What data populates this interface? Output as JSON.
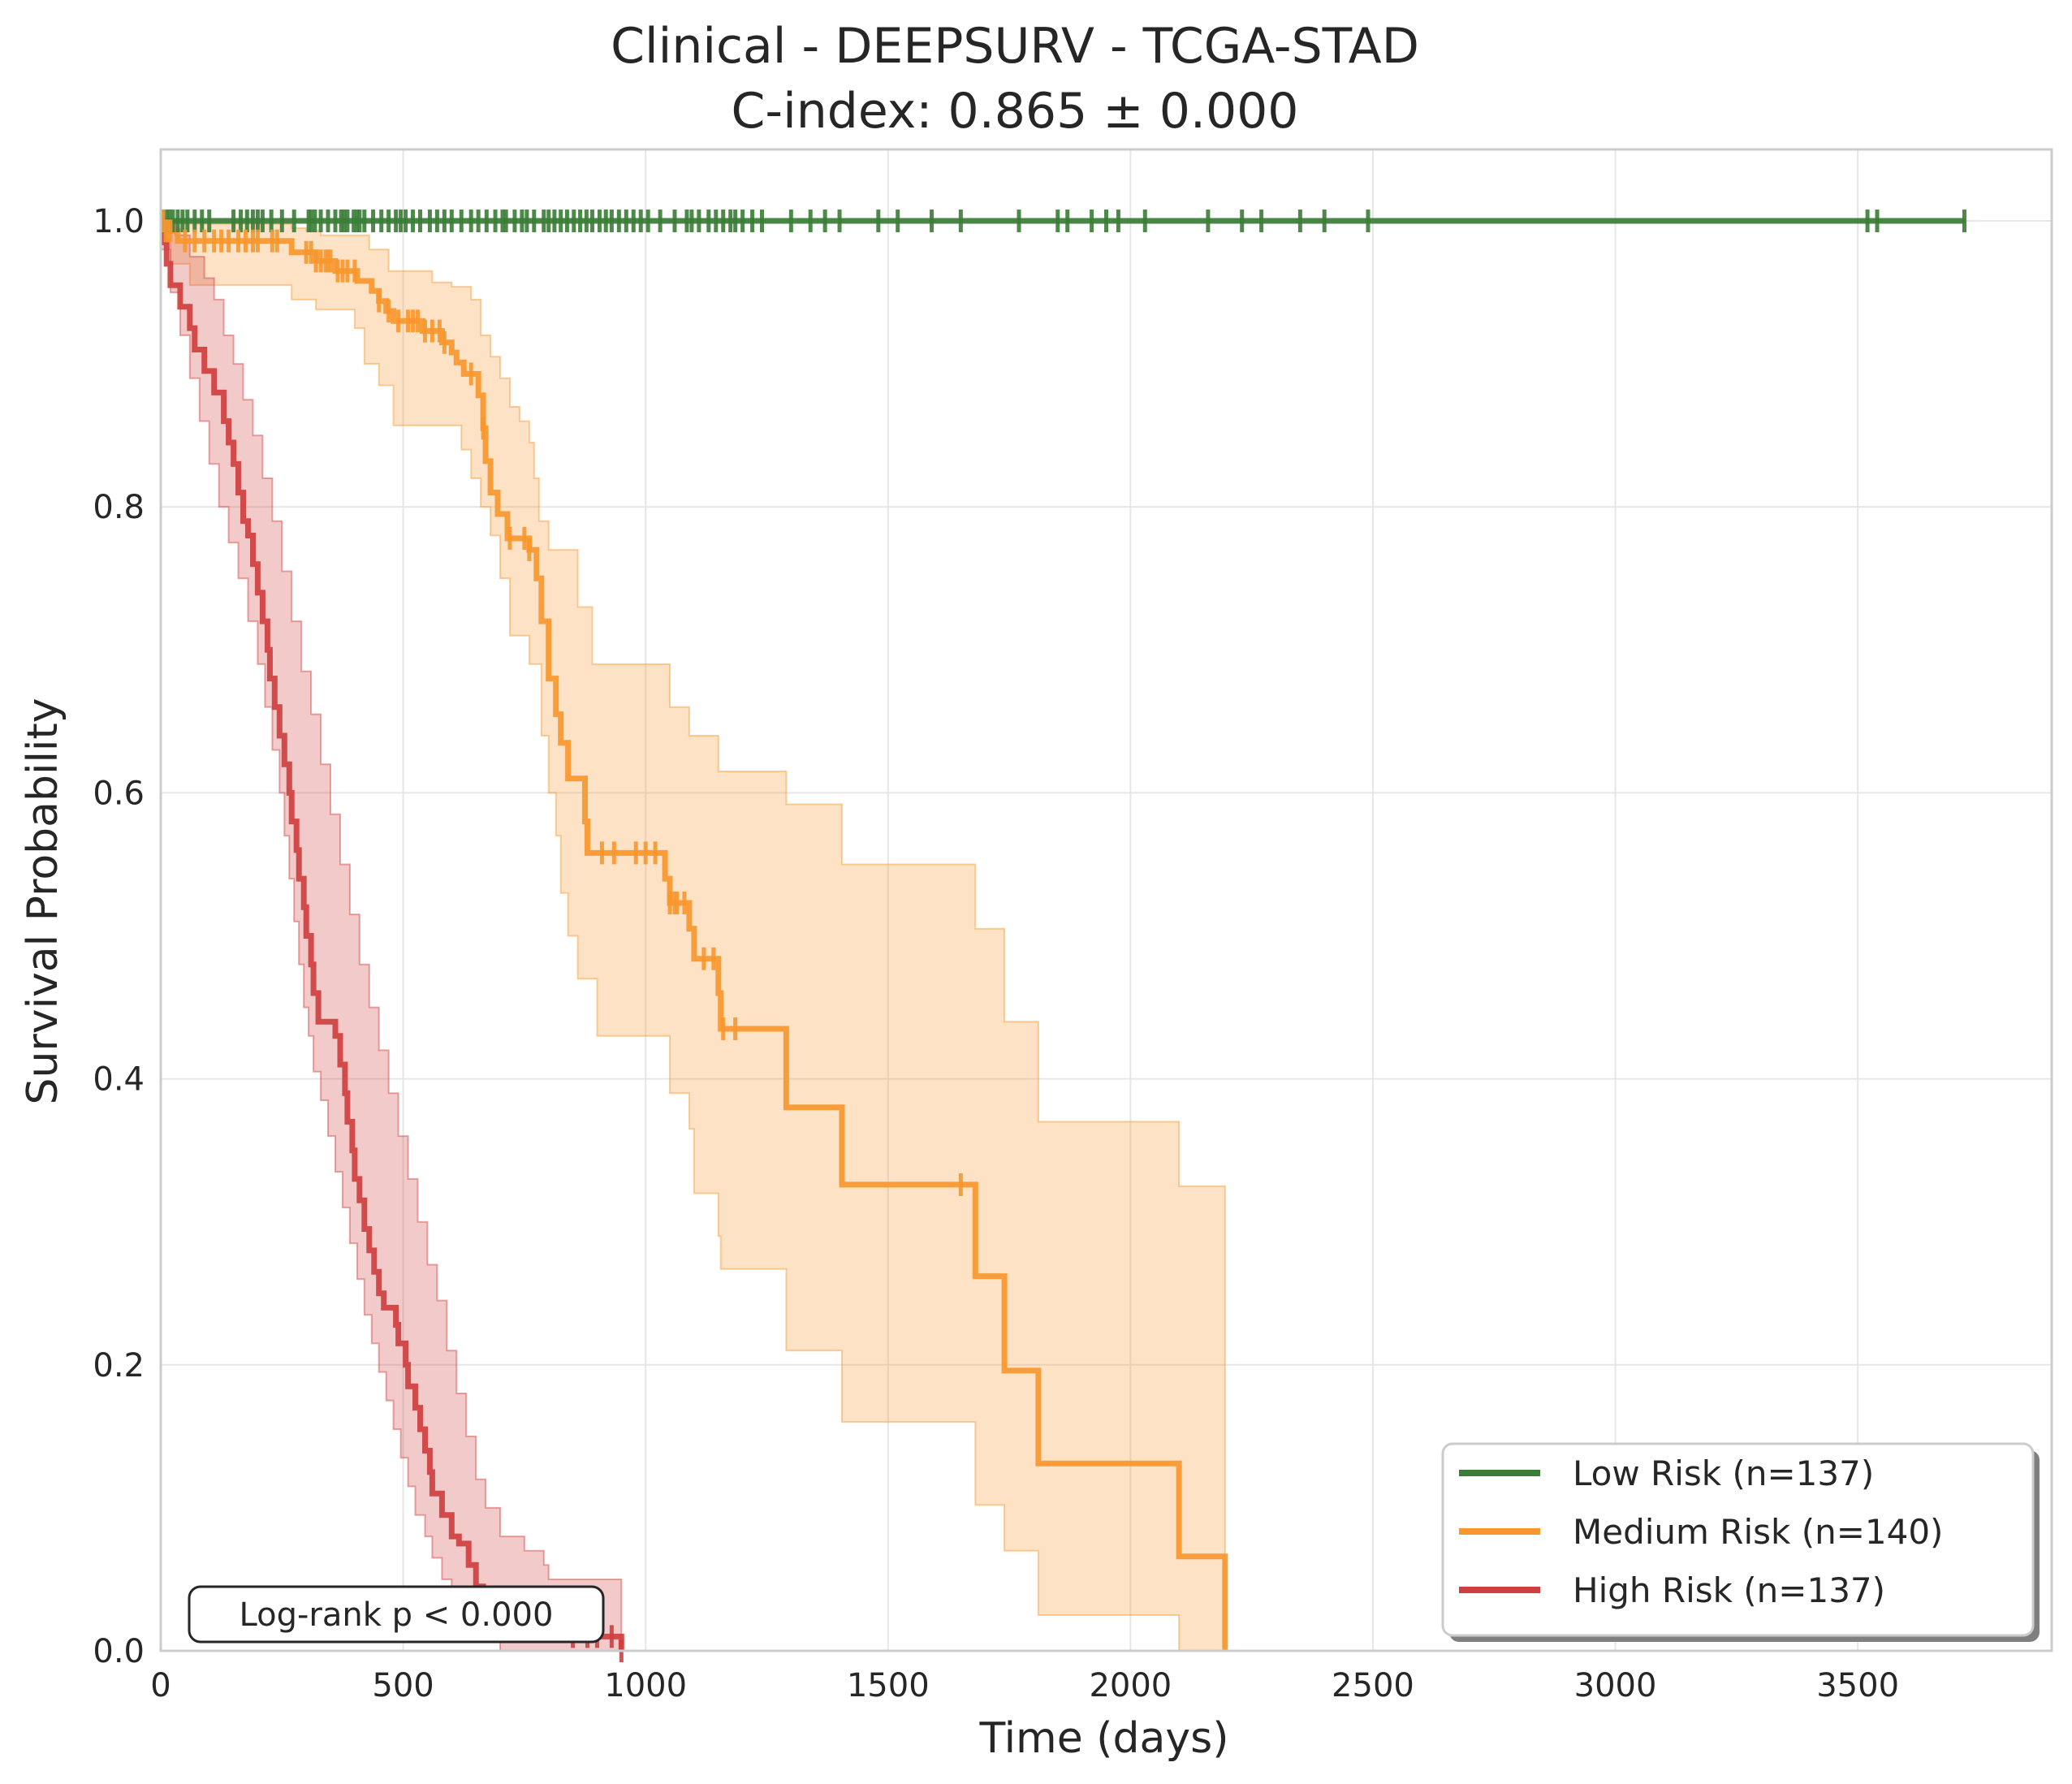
{
  "chart_data": {
    "type": "line",
    "subtype": "kaplan-meier",
    "title": "Clinical - DEEPSURV - TCGA-STAD",
    "subtitle": "C-index: 0.865 ± 0.000",
    "xlabel": "Time (days)",
    "ylabel": "Survival Probability",
    "xlim": [
      0,
      3900
    ],
    "ylim": [
      0,
      1.05
    ],
    "xticks": [
      "0",
      "500",
      "1000",
      "1500",
      "2000",
      "2500",
      "3000",
      "3500"
    ],
    "xtick_values": [
      0,
      500,
      1000,
      1500,
      2000,
      2500,
      3000,
      3500
    ],
    "yticks": [
      "0.0",
      "0.2",
      "0.4",
      "0.6",
      "0.8",
      "1.0"
    ],
    "ytick_values": [
      0,
      0.2,
      0.4,
      0.6,
      0.8,
      1.0
    ],
    "grid": true,
    "legend_position": "lower-right",
    "annotation": "Log-rank p < 0.000",
    "series": [
      {
        "name": "Low Risk (n=137)",
        "color": "#3a7d36",
        "steps": [
          [
            0,
            1.0
          ],
          [
            3720,
            1.0
          ]
        ],
        "ci_upper": [],
        "ci_lower": [],
        "censor": [
          5,
          12,
          18,
          25,
          35,
          45,
          55,
          70,
          85,
          100,
          150,
          165,
          178,
          190,
          200,
          210,
          228,
          250,
          275,
          305,
          310,
          318,
          330,
          345,
          360,
          372,
          378,
          385,
          398,
          405,
          410,
          420,
          438,
          455,
          470,
          485,
          495,
          505,
          520,
          535,
          555,
          570,
          585,
          600,
          620,
          640,
          655,
          672,
          690,
          705,
          712,
          730,
          745,
          755,
          770,
          790,
          800,
          812,
          825,
          838,
          852,
          865,
          878,
          890,
          905,
          918,
          930,
          945,
          960,
          975,
          990,
          1005,
          1030,
          1060,
          1085,
          1095,
          1110,
          1130,
          1145,
          1160,
          1175,
          1185,
          1200,
          1220,
          1240,
          1300,
          1340,
          1370,
          1400,
          1480,
          1520,
          1590,
          1650,
          1770,
          1850,
          1870,
          1920,
          1950,
          1975,
          2030,
          2160,
          2230,
          2270,
          2350,
          2400,
          2490,
          3520,
          3540,
          3720
        ]
      },
      {
        "name": "Medium Risk (n=140)",
        "color": "#f7972e",
        "steps": [
          [
            0,
            1.0
          ],
          [
            8,
            0.993
          ],
          [
            35,
            0.986
          ],
          [
            270,
            0.978
          ],
          [
            320,
            0.972
          ],
          [
            360,
            0.965
          ],
          [
            405,
            0.958
          ],
          [
            435,
            0.951
          ],
          [
            450,
            0.944
          ],
          [
            465,
            0.937
          ],
          [
            480,
            0.93
          ],
          [
            540,
            0.923
          ],
          [
            580,
            0.915
          ],
          [
            600,
            0.908
          ],
          [
            610,
            0.901
          ],
          [
            625,
            0.893
          ],
          [
            655,
            0.878
          ],
          [
            665,
            0.855
          ],
          [
            670,
            0.832
          ],
          [
            680,
            0.81
          ],
          [
            695,
            0.795
          ],
          [
            715,
            0.778
          ],
          [
            760,
            0.77
          ],
          [
            775,
            0.75
          ],
          [
            785,
            0.72
          ],
          [
            800,
            0.68
          ],
          [
            815,
            0.655
          ],
          [
            825,
            0.635
          ],
          [
            840,
            0.61
          ],
          [
            875,
            0.58
          ],
          [
            880,
            0.558
          ],
          [
            1040,
            0.54
          ],
          [
            1050,
            0.523
          ],
          [
            1090,
            0.505
          ],
          [
            1100,
            0.484
          ],
          [
            1150,
            0.46
          ],
          [
            1155,
            0.435
          ],
          [
            1290,
            0.38
          ],
          [
            1405,
            0.326
          ],
          [
            1680,
            0.262
          ],
          [
            1740,
            0.196
          ],
          [
            1810,
            0.131
          ],
          [
            2100,
            0.066
          ],
          [
            2195,
            0.0
          ]
        ],
        "ci_upper": [
          [
            0,
            1.0
          ],
          [
            30,
            0.998
          ],
          [
            270,
            0.995
          ],
          [
            300,
            0.993
          ],
          [
            330,
            0.99
          ],
          [
            430,
            0.98
          ],
          [
            470,
            0.965
          ],
          [
            560,
            0.957
          ],
          [
            600,
            0.954
          ],
          [
            640,
            0.945
          ],
          [
            660,
            0.92
          ],
          [
            680,
            0.905
          ],
          [
            700,
            0.89
          ],
          [
            720,
            0.87
          ],
          [
            740,
            0.86
          ],
          [
            760,
            0.845
          ],
          [
            770,
            0.82
          ],
          [
            780,
            0.79
          ],
          [
            800,
            0.77
          ],
          [
            860,
            0.73
          ],
          [
            890,
            0.69
          ],
          [
            1020,
            0.69
          ],
          [
            1050,
            0.66
          ],
          [
            1090,
            0.64
          ],
          [
            1150,
            0.615
          ],
          [
            1290,
            0.592
          ],
          [
            1405,
            0.55
          ],
          [
            1680,
            0.505
          ],
          [
            1740,
            0.44
          ],
          [
            1810,
            0.37
          ],
          [
            2100,
            0.325
          ],
          [
            2195,
            0.25
          ]
        ],
        "ci_lower": [
          [
            0,
            0.985
          ],
          [
            20,
            0.97
          ],
          [
            60,
            0.955
          ],
          [
            270,
            0.945
          ],
          [
            320,
            0.938
          ],
          [
            400,
            0.925
          ],
          [
            420,
            0.9
          ],
          [
            450,
            0.885
          ],
          [
            480,
            0.857
          ],
          [
            590,
            0.857
          ],
          [
            620,
            0.84
          ],
          [
            640,
            0.82
          ],
          [
            660,
            0.8
          ],
          [
            680,
            0.78
          ],
          [
            700,
            0.75
          ],
          [
            720,
            0.71
          ],
          [
            760,
            0.69
          ],
          [
            785,
            0.64
          ],
          [
            800,
            0.6
          ],
          [
            815,
            0.57
          ],
          [
            825,
            0.53
          ],
          [
            840,
            0.5
          ],
          [
            860,
            0.47
          ],
          [
            900,
            0.43
          ],
          [
            1050,
            0.39
          ],
          [
            1090,
            0.365
          ],
          [
            1100,
            0.32
          ],
          [
            1150,
            0.29
          ],
          [
            1155,
            0.267
          ],
          [
            1290,
            0.21
          ],
          [
            1405,
            0.16
          ],
          [
            1680,
            0.102
          ],
          [
            1740,
            0.07
          ],
          [
            1810,
            0.025
          ],
          [
            2100,
            0.0
          ],
          [
            2195,
            0.0
          ]
        ],
        "censor": [
          5,
          10,
          15,
          20,
          50,
          70,
          90,
          110,
          125,
          140,
          160,
          175,
          190,
          200,
          230,
          240,
          300,
          310,
          320,
          330,
          340,
          345,
          350,
          365,
          375,
          385,
          400,
          450,
          470,
          490,
          510,
          520,
          530,
          545,
          560,
          575,
          585,
          640,
          665,
          720,
          750,
          760,
          910,
          935,
          980,
          1000,
          1020,
          1050,
          1060,
          1065,
          1080,
          1120,
          1140,
          1160,
          1185,
          1650
        ]
      },
      {
        "name": "High Risk (n=137)",
        "color": "#d03f3f",
        "steps": [
          [
            0,
            1.0
          ],
          [
            5,
            0.985
          ],
          [
            12,
            0.97
          ],
          [
            20,
            0.955
          ],
          [
            40,
            0.94
          ],
          [
            60,
            0.925
          ],
          [
            70,
            0.91
          ],
          [
            90,
            0.895
          ],
          [
            110,
            0.88
          ],
          [
            130,
            0.86
          ],
          [
            140,
            0.845
          ],
          [
            150,
            0.83
          ],
          [
            160,
            0.81
          ],
          [
            170,
            0.79
          ],
          [
            180,
            0.78
          ],
          [
            190,
            0.76
          ],
          [
            200,
            0.74
          ],
          [
            210,
            0.72
          ],
          [
            220,
            0.7
          ],
          [
            225,
            0.68
          ],
          [
            235,
            0.66
          ],
          [
            245,
            0.64
          ],
          [
            255,
            0.62
          ],
          [
            265,
            0.6
          ],
          [
            270,
            0.58
          ],
          [
            280,
            0.56
          ],
          [
            285,
            0.54
          ],
          [
            295,
            0.52
          ],
          [
            300,
            0.5
          ],
          [
            310,
            0.48
          ],
          [
            315,
            0.46
          ],
          [
            325,
            0.44
          ],
          [
            360,
            0.43
          ],
          [
            370,
            0.41
          ],
          [
            380,
            0.39
          ],
          [
            385,
            0.37
          ],
          [
            395,
            0.35
          ],
          [
            400,
            0.33
          ],
          [
            410,
            0.315
          ],
          [
            420,
            0.295
          ],
          [
            430,
            0.28
          ],
          [
            440,
            0.265
          ],
          [
            450,
            0.25
          ],
          [
            460,
            0.24
          ],
          [
            485,
            0.228
          ],
          [
            490,
            0.215
          ],
          [
            505,
            0.2
          ],
          [
            510,
            0.185
          ],
          [
            525,
            0.17
          ],
          [
            535,
            0.155
          ],
          [
            545,
            0.14
          ],
          [
            555,
            0.125
          ],
          [
            560,
            0.11
          ],
          [
            580,
            0.095
          ],
          [
            600,
            0.08
          ],
          [
            615,
            0.075
          ],
          [
            635,
            0.06
          ],
          [
            650,
            0.045
          ],
          [
            665,
            0.04
          ],
          [
            775,
            0.03
          ],
          [
            780,
            0.02
          ],
          [
            800,
            0.01
          ],
          [
            950,
            0.0
          ]
        ],
        "ci_upper": [
          [
            0,
            1.0
          ],
          [
            30,
            0.99
          ],
          [
            60,
            0.975
          ],
          [
            90,
            0.96
          ],
          [
            110,
            0.945
          ],
          [
            130,
            0.92
          ],
          [
            150,
            0.9
          ],
          [
            170,
            0.875
          ],
          [
            190,
            0.85
          ],
          [
            210,
            0.82
          ],
          [
            230,
            0.79
          ],
          [
            250,
            0.755
          ],
          [
            270,
            0.72
          ],
          [
            290,
            0.685
          ],
          [
            310,
            0.655
          ],
          [
            330,
            0.62
          ],
          [
            350,
            0.585
          ],
          [
            370,
            0.55
          ],
          [
            390,
            0.515
          ],
          [
            410,
            0.48
          ],
          [
            430,
            0.45
          ],
          [
            450,
            0.42
          ],
          [
            470,
            0.39
          ],
          [
            490,
            0.36
          ],
          [
            510,
            0.33
          ],
          [
            530,
            0.3
          ],
          [
            550,
            0.27
          ],
          [
            570,
            0.245
          ],
          [
            590,
            0.21
          ],
          [
            610,
            0.18
          ],
          [
            630,
            0.15
          ],
          [
            650,
            0.12
          ],
          [
            670,
            0.1
          ],
          [
            700,
            0.08
          ],
          [
            750,
            0.07
          ],
          [
            790,
            0.06
          ],
          [
            800,
            0.05
          ],
          [
            950,
            0.03
          ]
        ],
        "ci_lower": [
          [
            0,
            0.98
          ],
          [
            20,
            0.95
          ],
          [
            40,
            0.92
          ],
          [
            60,
            0.89
          ],
          [
            80,
            0.86
          ],
          [
            100,
            0.83
          ],
          [
            120,
            0.8
          ],
          [
            140,
            0.775
          ],
          [
            160,
            0.75
          ],
          [
            180,
            0.72
          ],
          [
            200,
            0.69
          ],
          [
            215,
            0.66
          ],
          [
            230,
            0.63
          ],
          [
            245,
            0.6
          ],
          [
            255,
            0.57
          ],
          [
            265,
            0.54
          ],
          [
            275,
            0.51
          ],
          [
            285,
            0.48
          ],
          [
            295,
            0.45
          ],
          [
            305,
            0.43
          ],
          [
            315,
            0.405
          ],
          [
            330,
            0.385
          ],
          [
            345,
            0.36
          ],
          [
            360,
            0.335
          ],
          [
            375,
            0.31
          ],
          [
            390,
            0.285
          ],
          [
            405,
            0.26
          ],
          [
            420,
            0.235
          ],
          [
            435,
            0.215
          ],
          [
            450,
            0.195
          ],
          [
            465,
            0.175
          ],
          [
            480,
            0.155
          ],
          [
            495,
            0.135
          ],
          [
            510,
            0.115
          ],
          [
            525,
            0.095
          ],
          [
            545,
            0.08
          ],
          [
            560,
            0.065
          ],
          [
            580,
            0.05
          ],
          [
            600,
            0.04
          ],
          [
            620,
            0.03
          ],
          [
            640,
            0.02
          ],
          [
            660,
            0.01
          ],
          [
            700,
            0.0
          ],
          [
            950,
            0.0
          ]
        ],
        "censor": [
          850,
          880,
          900,
          930,
          950
        ]
      }
    ]
  }
}
